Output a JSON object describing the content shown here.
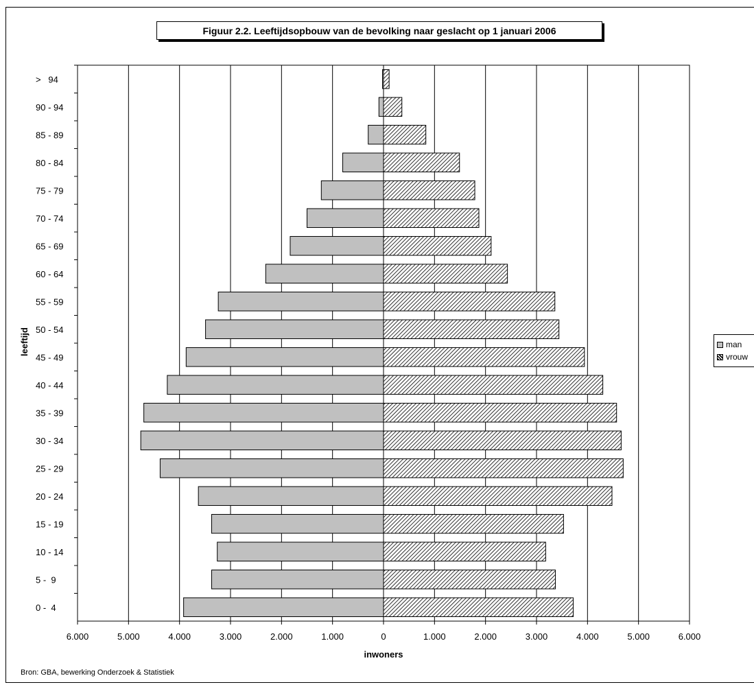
{
  "title": "Figuur 2.2. Leeftijdsopbouw van de bevolking naar geslacht op 1 januari 2006",
  "source": "Bron: GBA, bewerking Onderzoek & Statistiek",
  "colors": {
    "man": "#c0c0c0",
    "vrouw_pattern": "#000000",
    "grid": "#000000"
  },
  "chart_data": {
    "type": "bar",
    "orientation": "horizontal",
    "layout": "population-pyramid",
    "xlabel": "inwoners",
    "ylabel": "leeftijd",
    "xlim": [
      -6000,
      6000
    ],
    "xticks": [
      -6000,
      -5000,
      -4000,
      -3000,
      -2000,
      -1000,
      0,
      1000,
      2000,
      3000,
      4000,
      5000,
      6000
    ],
    "xtick_labels": [
      "6.000",
      "5.000",
      "4.000",
      "3.000",
      "2.000",
      "1.000",
      "0",
      "1.000",
      "2.000",
      "3.000",
      "4.000",
      "5.000",
      "6.000"
    ],
    "grid": "vertical",
    "legend_position": "right",
    "categories": [
      ">   94",
      "90 - 94",
      "85 - 89",
      "80 - 84",
      "75 - 79",
      "70 - 74",
      "65 - 69",
      "60 - 64",
      "55 - 59",
      "50 - 54",
      "45 - 49",
      "40 - 44",
      "35 - 39",
      "30 - 34",
      "25 - 29",
      "20 - 24",
      "15 - 19",
      "10 - 14",
      "5 -  9",
      "0 -  4"
    ],
    "series": [
      {
        "name": "man",
        "values": [
          20,
          90,
          300,
          800,
          1220,
          1500,
          1830,
          2310,
          3240,
          3490,
          3870,
          4240,
          4700,
          4760,
          4380,
          3630,
          3370,
          3260,
          3370,
          3920
        ]
      },
      {
        "name": "vrouw",
        "values": [
          110,
          360,
          830,
          1490,
          1790,
          1870,
          2110,
          2430,
          3360,
          3440,
          3940,
          4300,
          4570,
          4660,
          4700,
          4480,
          3530,
          3180,
          3370,
          3720
        ]
      }
    ]
  }
}
